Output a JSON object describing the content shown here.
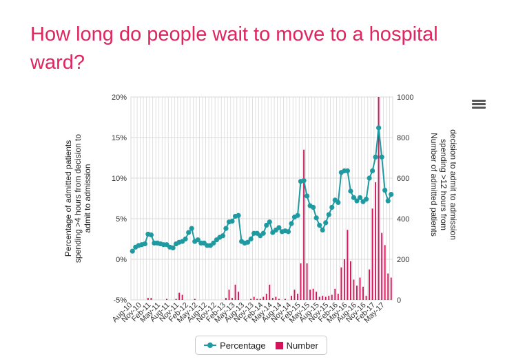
{
  "title": "How long do people wait to move to a hospital ward?",
  "legend": {
    "percentage": "Percentage",
    "number": "Number"
  },
  "colors": {
    "title": "#e0255e",
    "line": "#1e9aa0",
    "bar": "#d4145a",
    "grid": "#d9d9d9"
  },
  "menu_icon": "hamburger-menu-icon",
  "chart_data": {
    "type": "bar+line",
    "grid": true,
    "legend_position": "bottom-center",
    "left_axis": {
      "label": "Percentage of admitted patients spending >4 hours from decision to admit to admission",
      "ylim": [
        -5,
        20
      ],
      "ticks": [
        "-5%",
        "0%",
        "5%",
        "10%",
        "15%",
        "20%"
      ]
    },
    "right_axis": {
      "label": "Number of admitted patients spending >12 hours from decision to admit to admission",
      "ylim": [
        0,
        1000
      ],
      "ticks": [
        "0",
        "200",
        "400",
        "600",
        "800",
        "1000"
      ]
    },
    "x_tick_labels": [
      "Aug-10",
      "Nov-10",
      "Feb-11",
      "May-11",
      "Aug-11",
      "Nov-11",
      "Feb-12",
      "May-12",
      "Aug-12",
      "Nov-12",
      "Feb-13",
      "May-13",
      "Aug-13",
      "Nov-13",
      "Feb-14",
      "May-14",
      "Aug-14",
      "Nov-14",
      "Feb-15",
      "May-15",
      "Aug-15",
      "Nov-15",
      "Feb-16",
      "May-16",
      "Aug-16",
      "Nov-16",
      "Feb-17",
      "May-17"
    ],
    "x_start": "Aug-10",
    "x_end": "Jun-17",
    "series": [
      {
        "name": "Percentage",
        "type": "line",
        "axis": "left",
        "values": [
          1.0,
          1.5,
          1.7,
          1.8,
          1.9,
          3.1,
          3.0,
          2.0,
          2.0,
          1.9,
          1.8,
          1.8,
          1.5,
          1.4,
          1.9,
          2.1,
          2.2,
          2.5,
          3.3,
          3.8,
          2.2,
          2.4,
          2.0,
          2.0,
          1.7,
          1.7,
          2.0,
          2.4,
          2.7,
          2.9,
          3.8,
          4.6,
          4.7,
          5.3,
          5.4,
          2.2,
          2.0,
          2.1,
          2.5,
          3.2,
          3.2,
          2.9,
          3.2,
          4.2,
          4.6,
          3.3,
          3.6,
          3.9,
          3.4,
          3.5,
          3.4,
          4.4,
          5.2,
          5.4,
          9.6,
          9.7,
          7.8,
          6.6,
          6.4,
          5.1,
          4.2,
          3.6,
          4.5,
          5.5,
          6.4,
          7.3,
          7.0,
          10.7,
          10.9,
          10.9,
          8.4,
          7.6,
          7.2,
          7.6,
          7.1,
          7.4,
          10.0,
          10.9,
          12.6,
          16.2,
          12.6,
          8.5,
          7.2,
          8.0
        ]
      },
      {
        "name": "Number",
        "type": "bar",
        "axis": "right",
        "values": [
          0,
          0,
          0,
          0,
          0,
          10,
          10,
          0,
          0,
          0,
          0,
          5,
          0,
          0,
          5,
          35,
          25,
          0,
          0,
          0,
          5,
          0,
          0,
          0,
          0,
          0,
          0,
          0,
          0,
          0,
          10,
          50,
          10,
          75,
          40,
          0,
          0,
          0,
          5,
          15,
          5,
          5,
          15,
          30,
          75,
          10,
          15,
          5,
          0,
          5,
          0,
          20,
          50,
          30,
          180,
          740,
          180,
          50,
          55,
          40,
          15,
          20,
          15,
          20,
          25,
          55,
          30,
          160,
          200,
          345,
          190,
          100,
          70,
          110,
          65,
          20,
          150,
          450,
          580,
          1000,
          330,
          270,
          130,
          110
        ]
      }
    ]
  }
}
